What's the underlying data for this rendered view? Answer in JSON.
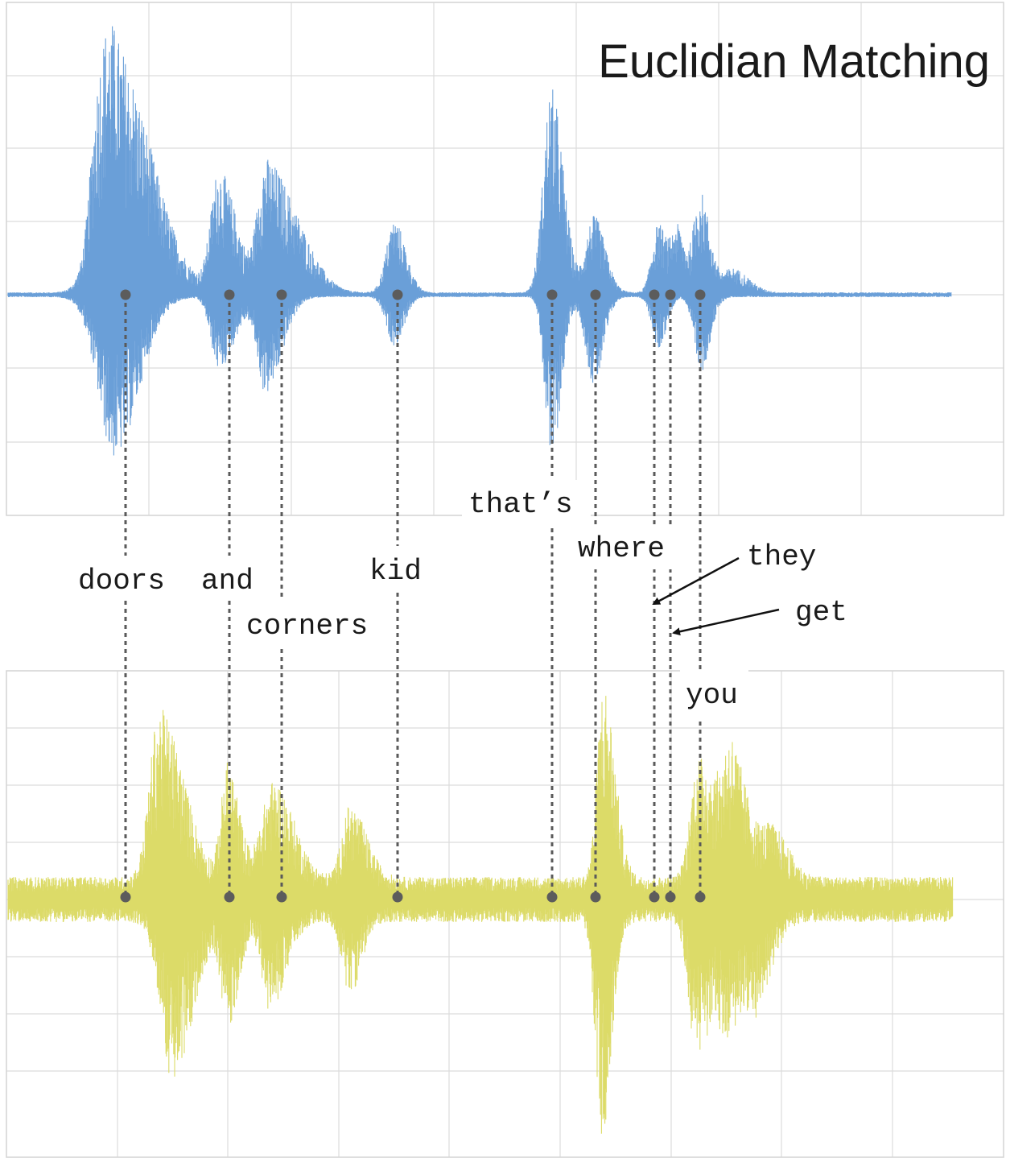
{
  "title": "Euclidian Matching",
  "colors": {
    "top_waveform": "#6a9fd8",
    "bottom_waveform": "#dcdb68",
    "grid": "#dcdcdc",
    "connector": "#5a5a5a"
  },
  "words": [
    {
      "text": "doors"
    },
    {
      "text": "and"
    },
    {
      "text": "corners"
    },
    {
      "text": "kid"
    },
    {
      "text": "that’s"
    },
    {
      "text": "where"
    },
    {
      "text": "they"
    },
    {
      "text": "get"
    },
    {
      "text": "you"
    }
  ]
}
